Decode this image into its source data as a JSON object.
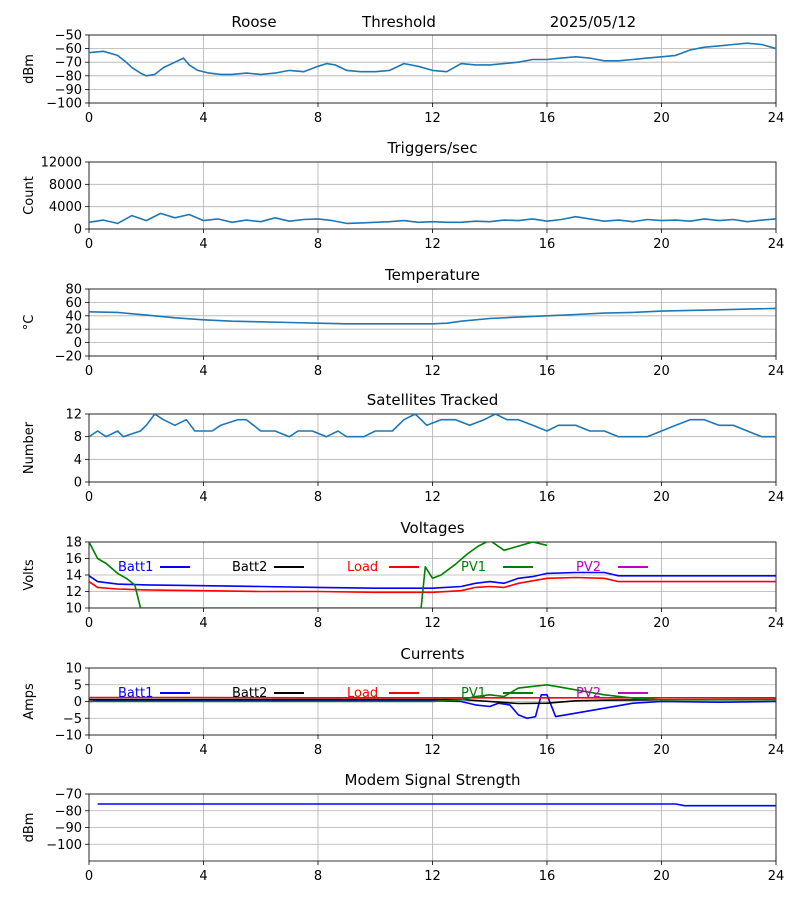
{
  "header": {
    "station": "Roose",
    "mode": "Threshold",
    "date": "2025/05/12"
  },
  "chart_data": [
    {
      "type": "line",
      "title": "",
      "xlabel": "",
      "ylabel": "dBm",
      "xlim": [
        0,
        24
      ],
      "ylim": [
        -100,
        -50
      ],
      "xticks": [
        0,
        4,
        8,
        12,
        16,
        20,
        24
      ],
      "yticks": [
        -100,
        -90,
        -80,
        -70,
        -60,
        -50
      ],
      "grid": true,
      "series": [
        {
          "color": "#1f77b4",
          "x": [
            0,
            0.5,
            1,
            1.3,
            1.5,
            1.8,
            2,
            2.3,
            2.6,
            3.0,
            3.3,
            3.5,
            3.8,
            4.2,
            4.6,
            5,
            5.5,
            6,
            6.5,
            7,
            7.5,
            8,
            8.3,
            8.6,
            9,
            9.5,
            10,
            10.5,
            11,
            11.5,
            12,
            12.5,
            13,
            13.5,
            14,
            14.5,
            15,
            15.5,
            16,
            16.5,
            17,
            17.5,
            18,
            18.5,
            19,
            19.5,
            20,
            20.5,
            21,
            21.5,
            22,
            22.5,
            23,
            23.5,
            24
          ],
          "values": [
            -63,
            -62,
            -65,
            -70,
            -74,
            -78,
            -80,
            -79,
            -74,
            -70,
            -67,
            -72,
            -76,
            -78,
            -79,
            -79,
            -78,
            -79,
            -78,
            -76,
            -77,
            -73,
            -71,
            -72,
            -76,
            -77,
            -77,
            -76,
            -71,
            -73,
            -76,
            -77,
            -71,
            -72,
            -72,
            -71,
            -70,
            -68,
            -68,
            -67,
            -66,
            -67,
            -69,
            -69,
            -68,
            -67,
            -66,
            -65,
            -61,
            -59,
            -58,
            -57,
            -56,
            -57,
            -60
          ]
        }
      ]
    },
    {
      "type": "line",
      "title": "Triggers/sec",
      "xlabel": "",
      "ylabel": "Count",
      "xlim": [
        0,
        24
      ],
      "ylim": [
        0,
        12000
      ],
      "xticks": [
        0,
        4,
        8,
        12,
        16,
        20,
        24
      ],
      "yticks": [
        0,
        4000,
        8000,
        12000
      ],
      "grid": true,
      "series": [
        {
          "color": "#1f77b4",
          "x": [
            0,
            0.5,
            1,
            1.5,
            2,
            2.5,
            3,
            3.5,
            4,
            4.5,
            5,
            5.5,
            6,
            6.5,
            7,
            7.5,
            8,
            8.5,
            9,
            9.5,
            10,
            10.5,
            11,
            11.5,
            12,
            12.5,
            13,
            13.5,
            14,
            14.5,
            15,
            15.5,
            16,
            16.5,
            17,
            17.5,
            18,
            18.5,
            19,
            19.5,
            20,
            20.5,
            21,
            21.5,
            22,
            22.5,
            23,
            23.5,
            24
          ],
          "values": [
            1200,
            1600,
            1000,
            2400,
            1500,
            2800,
            2000,
            2600,
            1500,
            1800,
            1200,
            1600,
            1300,
            2000,
            1400,
            1700,
            1800,
            1500,
            1000,
            1100,
            1200,
            1300,
            1500,
            1200,
            1300,
            1200,
            1200,
            1400,
            1300,
            1600,
            1500,
            1800,
            1400,
            1700,
            2200,
            1800,
            1400,
            1600,
            1300,
            1700,
            1500,
            1600,
            1400,
            1800,
            1500,
            1700,
            1300,
            1600,
            1800
          ]
        }
      ]
    },
    {
      "type": "line",
      "title": "Temperature",
      "xlabel": "",
      "ylabel": "°C",
      "xlim": [
        0,
        24
      ],
      "ylim": [
        -20,
        80
      ],
      "xticks": [
        0,
        4,
        8,
        12,
        16,
        20,
        24
      ],
      "yticks": [
        -20,
        0,
        20,
        40,
        60,
        80
      ],
      "grid": true,
      "series": [
        {
          "color": "#1f77b4",
          "x": [
            0,
            1,
            2,
            3,
            4,
            5,
            6,
            7,
            8,
            9,
            10,
            11,
            12,
            12.5,
            13,
            14,
            15,
            16,
            17,
            18,
            19,
            20,
            21,
            22,
            23,
            24
          ],
          "values": [
            46,
            45,
            41,
            37,
            34,
            32,
            31,
            30,
            29,
            28,
            28,
            28,
            28,
            29,
            32,
            36,
            38,
            40,
            42,
            44,
            45,
            47,
            48,
            49,
            50,
            51
          ]
        }
      ]
    },
    {
      "type": "line",
      "title": "Satellites Tracked",
      "xlabel": "",
      "ylabel": "Number",
      "xlim": [
        0,
        24
      ],
      "ylim": [
        0,
        12
      ],
      "xticks": [
        0,
        4,
        8,
        12,
        16,
        20,
        24
      ],
      "yticks": [
        0,
        4,
        8,
        12
      ],
      "grid": true,
      "series": [
        {
          "color": "#1f77b4",
          "x": [
            0,
            0.3,
            0.6,
            1.0,
            1.2,
            1.8,
            2.0,
            2.3,
            2.6,
            3.0,
            3.4,
            3.7,
            4.3,
            4.6,
            5.2,
            5.5,
            6.0,
            6.5,
            7.0,
            7.3,
            7.8,
            8.3,
            8.7,
            9.0,
            9.6,
            10.0,
            10.6,
            11.0,
            11.4,
            11.8,
            12.3,
            12.8,
            13.3,
            13.8,
            14.2,
            14.6,
            15.0,
            15.5,
            16.0,
            16.4,
            17.0,
            17.5,
            18.0,
            18.5,
            19.0,
            19.5,
            20.0,
            20.5,
            21.0,
            21.5,
            22.0,
            22.5,
            23.0,
            23.5,
            24.0
          ],
          "values": [
            8,
            9,
            8,
            9,
            8,
            9,
            10,
            12,
            11,
            10,
            11,
            9,
            9,
            10,
            11,
            11,
            9,
            9,
            8,
            9,
            9,
            8,
            9,
            8,
            8,
            9,
            9,
            11,
            12,
            10,
            11,
            11,
            10,
            11,
            12,
            11,
            11,
            10,
            9,
            10,
            10,
            9,
            9,
            8,
            8,
            8,
            9,
            10,
            11,
            11,
            10,
            10,
            9,
            8,
            8
          ]
        }
      ]
    },
    {
      "type": "line",
      "title": "Voltages",
      "xlabel": "",
      "ylabel": "Volts",
      "xlim": [
        0,
        24
      ],
      "ylim": [
        10,
        18
      ],
      "xticks": [
        0,
        4,
        8,
        12,
        16,
        20,
        24
      ],
      "yticks": [
        10,
        12,
        14,
        16,
        18
      ],
      "grid": true,
      "legend": "top, single row",
      "series": [
        {
          "name": "Batt1",
          "color": "#0000ff",
          "x": [
            0,
            0.3,
            1,
            2,
            4,
            6,
            8,
            10,
            12,
            13,
            13.5,
            14,
            14.5,
            15,
            15.5,
            16,
            17,
            18,
            18.5,
            20,
            22,
            24
          ],
          "values": [
            13.9,
            13.2,
            12.9,
            12.8,
            12.7,
            12.6,
            12.5,
            12.4,
            12.4,
            12.6,
            13.0,
            13.2,
            13.0,
            13.6,
            13.8,
            14.2,
            14.3,
            14.3,
            13.9,
            13.9,
            13.9,
            13.9
          ]
        },
        {
          "name": "Batt2",
          "color": "#000000",
          "x": [],
          "values": []
        },
        {
          "name": "Load",
          "color": "#ff0000",
          "x": [
            0,
            0.3,
            1,
            2,
            4,
            6,
            8,
            10,
            12,
            13,
            13.5,
            14,
            14.5,
            15,
            15.5,
            16,
            17,
            18,
            18.5,
            20,
            22,
            24
          ],
          "values": [
            13.2,
            12.5,
            12.3,
            12.2,
            12.1,
            12.0,
            12.0,
            11.9,
            11.9,
            12.1,
            12.5,
            12.6,
            12.5,
            13.0,
            13.3,
            13.6,
            13.7,
            13.6,
            13.2,
            13.2,
            13.2,
            13.2
          ]
        },
        {
          "name": "PV1",
          "color": "#008000",
          "x": [
            0,
            0.3,
            0.6,
            1.0,
            1.3,
            1.6,
            1.8,
            11.6,
            11.75,
            12.0,
            12.3,
            12.8,
            13.2,
            13.6,
            14.0,
            14.5,
            15.0,
            15.5,
            16.0
          ],
          "values": [
            18.0,
            16.0,
            15.4,
            14.2,
            13.6,
            12.8,
            10.0,
            10.0,
            15.0,
            13.6,
            14.0,
            15.3,
            16.5,
            17.5,
            18.2,
            17.0,
            17.5,
            18.0,
            17.6
          ]
        },
        {
          "name": "PV2",
          "color": "#bf00bf",
          "x": [],
          "values": []
        }
      ]
    },
    {
      "type": "line",
      "title": "Currents",
      "xlabel": "",
      "ylabel": "Amps",
      "xlim": [
        0,
        24
      ],
      "ylim": [
        -10,
        10
      ],
      "xticks": [
        0,
        4,
        8,
        12,
        16,
        20,
        24
      ],
      "yticks": [
        -10,
        -5,
        0,
        5,
        10
      ],
      "grid": true,
      "legend": "top, single row",
      "series": [
        {
          "name": "Batt1",
          "color": "#0000ff",
          "x": [
            0,
            0.3,
            1,
            4,
            8,
            12,
            13,
            13.5,
            14,
            14.3,
            14.7,
            15.0,
            15.3,
            15.6,
            15.8,
            16.0,
            16.3,
            17,
            18,
            19,
            20,
            22,
            24
          ],
          "values": [
            0.0,
            0.3,
            0.2,
            0.2,
            0.2,
            0.2,
            0.0,
            -1.0,
            -1.5,
            -0.5,
            -1.0,
            -4.0,
            -5.0,
            -4.5,
            2.0,
            2.0,
            -4.5,
            -3.5,
            -2.0,
            -0.5,
            0.0,
            -0.2,
            0.0
          ]
        },
        {
          "name": "Batt2",
          "color": "#000000",
          "x": [
            0,
            4,
            8,
            12,
            13,
            15,
            16,
            17,
            18,
            20,
            24
          ],
          "values": [
            0.6,
            0.6,
            0.6,
            0.6,
            0.6,
            -0.6,
            -0.5,
            0.2,
            0.4,
            0.5,
            0.6
          ]
        },
        {
          "name": "Load",
          "color": "#ff0000",
          "x": [
            0,
            4,
            8,
            12,
            16,
            20,
            24
          ],
          "values": [
            1.2,
            1.2,
            1.1,
            1.1,
            1.1,
            1.1,
            1.1
          ]
        },
        {
          "name": "PV1",
          "color": "#008000",
          "x": [
            0,
            12,
            13,
            13.5,
            14,
            14.5,
            15,
            15.5,
            16,
            17,
            18,
            19,
            20,
            24
          ],
          "values": [
            0,
            0,
            0.5,
            1.5,
            2.0,
            1.5,
            4.0,
            4.5,
            5.0,
            3.5,
            2.0,
            1.0,
            0.5,
            0.5
          ]
        },
        {
          "name": "PV2",
          "color": "#bf00bf",
          "x": [],
          "values": []
        }
      ]
    },
    {
      "type": "line",
      "title": "Modem Signal Strength",
      "xlabel": "",
      "ylabel": "dBm",
      "xlim": [
        0,
        24
      ],
      "ylim": [
        -110,
        -70
      ],
      "xticks": [
        0,
        4,
        8,
        12,
        16,
        20,
        24
      ],
      "yticks": [
        -100,
        -90,
        -80,
        -70
      ],
      "grid": true,
      "series": [
        {
          "color": "#0000ff",
          "x": [
            0.3,
            20.5,
            20.8,
            24
          ],
          "values": [
            -76,
            -76,
            -77,
            -77
          ]
        }
      ]
    }
  ]
}
